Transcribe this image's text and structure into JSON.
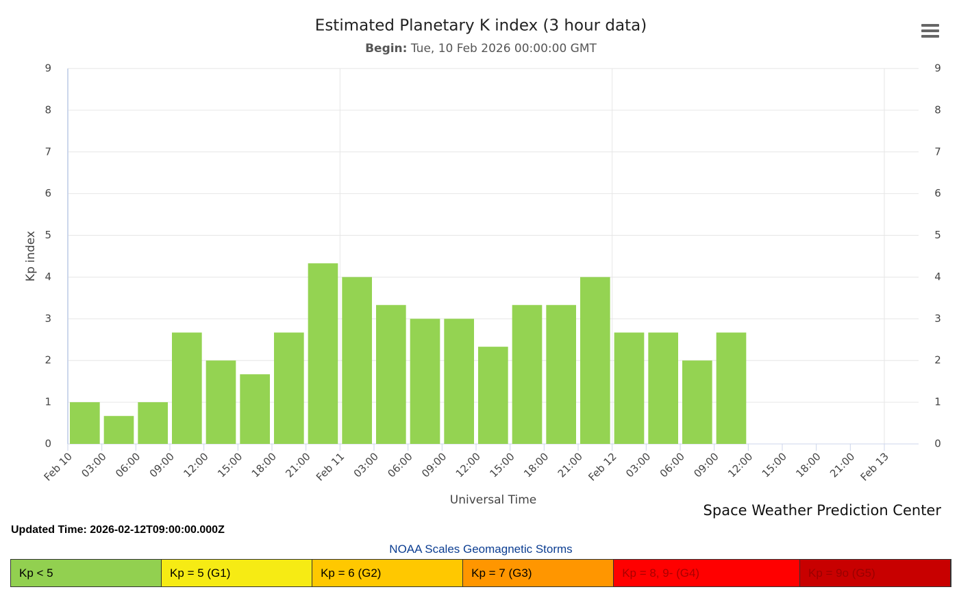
{
  "chart_data": {
    "type": "bar",
    "title": "Estimated Planetary K index (3 hour data)",
    "subtitle": {
      "label": "Begin:",
      "text": "Tue, 10 Feb 2026 00:00:00 GMT"
    },
    "y_label": "Kp index",
    "x_label": "Universal Time",
    "credit": "Space Weather Prediction Center",
    "xticks": [
      "Feb 10",
      "03:00",
      "06:00",
      "09:00",
      "12:00",
      "15:00",
      "18:00",
      "21:00",
      "Feb 11",
      "03:00",
      "06:00",
      "09:00",
      "12:00",
      "15:00",
      "18:00",
      "21:00",
      "Feb 12",
      "03:00",
      "06:00",
      "09:00",
      "12:00",
      "15:00",
      "18:00",
      "21:00",
      "Feb 13"
    ],
    "values": [
      1,
      0.67,
      1,
      2.67,
      2,
      1.67,
      2.67,
      4.33,
      4,
      3.33,
      3,
      3,
      2.33,
      3.33,
      3.33,
      4,
      2.67,
      2.67,
      2,
      2.67
    ],
    "color": "#94d352",
    "ylim": [
      0,
      9
    ],
    "yticks": [
      0,
      1,
      2,
      3,
      4,
      5,
      6,
      7,
      8,
      9
    ],
    "y2lim": [
      0,
      9
    ],
    "y2ticks": [
      0,
      1,
      2,
      3,
      4,
      5,
      6,
      7,
      8,
      9
    ],
    "grid": true
  },
  "updated": "Updated Time: 2026-02-12T09:00:00.000Z",
  "scale": {
    "title": "NOAA Scales Geomagnetic Storms",
    "items": [
      {
        "label": "Kp < 5",
        "color": "#92d050",
        "text_color": "#000000"
      },
      {
        "label": "Kp = 5 (G1)",
        "color": "#f6eb14",
        "text_color": "#000000"
      },
      {
        "label": "Kp = 6 (G2)",
        "color": "#ffc800",
        "text_color": "#000000"
      },
      {
        "label": "Kp = 7 (G3)",
        "color": "#ff9600",
        "text_color": "#000000"
      },
      {
        "label": "Kp = 8, 9- (G4)",
        "color": "#ff0000",
        "text_color": "#aa0000"
      },
      {
        "label": "Kp = 9o (G5)",
        "color": "#c80000",
        "text_color": "#990000"
      }
    ]
  }
}
